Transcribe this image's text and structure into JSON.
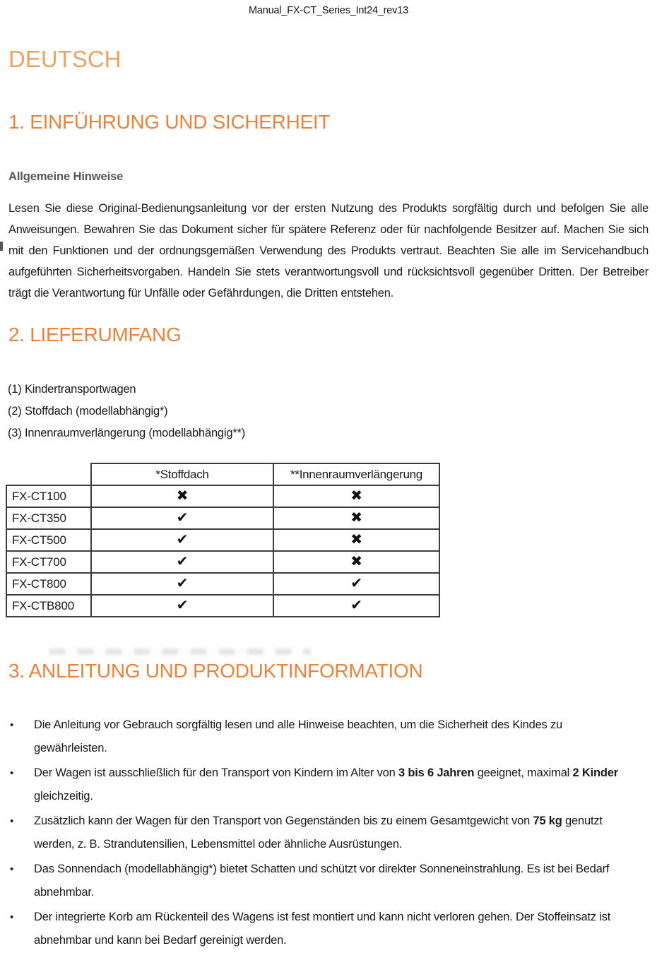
{
  "document_header": {
    "title": "Manual_FX-CT_Series_Int24_rev13"
  },
  "page_title": "DEUTSCH",
  "colors": {
    "title_orange": "#EDA15F",
    "heading_orange": "#E8833E",
    "subheading_gray": "#575757",
    "text": "#1b1b1b",
    "table_border": "#3d3d3d"
  },
  "icons": {
    "check": "✔",
    "cross": "✖"
  },
  "section_intro": {
    "heading": "1. EINFÜHRUNG UND SICHERHEIT",
    "subheading": "Allgemeine Hinweise",
    "paragraph": "Lesen Sie diese Original-Bedienungsanleitung vor der ersten Nutzung des Produkts sorgfältig durch und befolgen Sie alle Anweisungen. Bewahren Sie das Dokument sicher für spätere Referenz oder für nachfolgende Besitzer auf. Machen Sie sich mit den Funktionen und der ordnungsgemäßen Verwendung des Produkts vertraut. Beachten Sie alle im Servicehandbuch aufgeführten Sicherheitsvorgaben. Handeln Sie stets verantwortungsvoll und rücksichtsvoll gegenüber Dritten. Der Betreiber trägt die Verantwortung für Unfälle oder Gefährdungen, die Dritten entstehen."
  },
  "section_supply": {
    "heading": "2. LIEFERUMFANG",
    "items": [
      "(1) Kindertransportwagen",
      "(2) Stoffdach (modellabhängig*)",
      "(3) Innenraumverlängerung (modellabhängig**)"
    ]
  },
  "model_table": {
    "columns": [
      "",
      "*Stoffdach",
      "**Innenraumverlängerung"
    ],
    "rows": [
      {
        "model": "FX-CT100",
        "stoffdach": false,
        "innenraum": false
      },
      {
        "model": "FX-CT350",
        "stoffdach": true,
        "innenraum": false
      },
      {
        "model": "FX-CT500",
        "stoffdach": true,
        "innenraum": false
      },
      {
        "model": "FX-CT700",
        "stoffdach": true,
        "innenraum": false
      },
      {
        "model": "FX-CT800",
        "stoffdach": true,
        "innenraum": true
      },
      {
        "model": "FX-CTB800",
        "stoffdach": true,
        "innenraum": true
      }
    ]
  },
  "section_info": {
    "heading": "3. ANLEITUNG UND PRODUKTINFORMATION",
    "bullets": [
      [
        {
          "text": "Die Anleitung vor Gebrauch sorgfältig lesen und alle Hinweise beachten, um die Sicherheit des Kindes zu gewährleisten."
        }
      ],
      [
        {
          "text": "Der Wagen ist ausschließlich für den Transport von Kindern im Alter von "
        },
        {
          "text": "3 bis 6 Jahren",
          "bold": true
        },
        {
          "text": " geeignet, maximal "
        },
        {
          "text": "2 Kinder",
          "bold": true
        },
        {
          "text": " gleichzeitig."
        }
      ],
      [
        {
          "text": "Zusätzlich kann der Wagen für den Transport von Gegenständen bis zu einem Gesamtgewicht von "
        },
        {
          "text": "75 kg",
          "bold": true
        },
        {
          "text": " genutzt werden, z. B. Strandutensilien, Lebensmittel oder ähnliche Ausrüstungen."
        }
      ],
      [
        {
          "text": "Das Sonnendach (modellabhängig*) bietet Schatten und schützt vor direkter Sonneneinstrahlung. Es ist bei Bedarf abnehmbar."
        }
      ],
      [
        {
          "text": "Der integrierte Korb am Rückenteil des Wagens ist fest montiert und kann nicht verloren gehen. Der Stoffeinsatz ist abnehmbar und kann bei Bedarf gereinigt werden."
        }
      ]
    ]
  },
  "bullet_marker": "•"
}
